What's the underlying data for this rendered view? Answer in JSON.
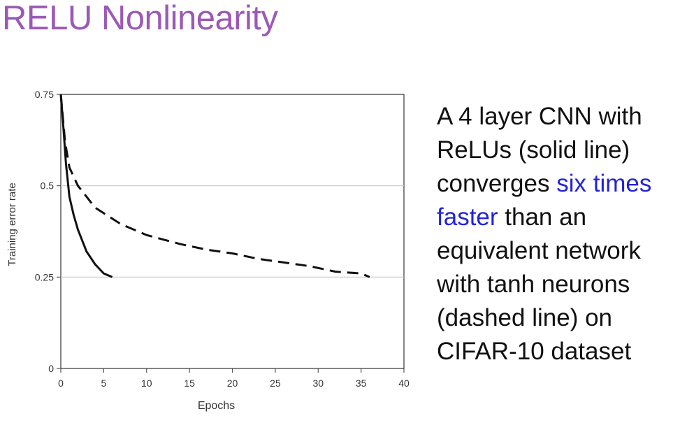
{
  "slide": {
    "title": "RELU Nonlinearity",
    "title_color": "#9b59b6"
  },
  "caption": {
    "lines": [
      {
        "parts": [
          {
            "text": "A 4 layer CNN with",
            "highlight": false
          }
        ]
      },
      {
        "parts": [
          {
            "text": "ReLUs (solid line)",
            "highlight": false
          }
        ]
      },
      {
        "parts": [
          {
            "text": "converges ",
            "highlight": false
          },
          {
            "text": "six times",
            "highlight": true
          }
        ]
      },
      {
        "parts": [
          {
            "text": "faster",
            "highlight": true
          },
          {
            "text": " than an",
            "highlight": false
          }
        ]
      },
      {
        "parts": [
          {
            "text": "equivalent network",
            "highlight": false
          }
        ]
      },
      {
        "parts": [
          {
            "text": "with tanh neurons",
            "highlight": false
          }
        ]
      },
      {
        "parts": [
          {
            "text": "(dashed line) on",
            "highlight": false
          }
        ]
      },
      {
        "parts": [
          {
            "text": "CIFAR-10 dataset",
            "highlight": false
          }
        ]
      }
    ],
    "text_color": "#111111",
    "highlight_color": "#2323d6"
  },
  "chart_data": {
    "type": "line",
    "title": "",
    "xlabel": "Epochs",
    "ylabel": "Training error rate",
    "xlim": [
      0,
      40
    ],
    "ylim": [
      0,
      0.75
    ],
    "x_ticks": [
      0,
      5,
      10,
      15,
      20,
      25,
      30,
      35,
      40
    ],
    "x_tick_labels": [
      "0",
      "5",
      "10",
      "15",
      "20",
      "25",
      "30",
      "35",
      "40"
    ],
    "y_ticks": [
      0,
      0.25,
      0.5,
      0.75
    ],
    "y_tick_labels": [
      "0",
      "0.25",
      "0.5",
      "0.75"
    ],
    "grid": "horizontal",
    "legend": "none",
    "series": [
      {
        "style": "solid",
        "x": [
          0,
          0.3,
          0.6,
          1,
          1.5,
          2,
          3,
          4,
          5,
          6
        ],
        "y": [
          0.75,
          0.66,
          0.56,
          0.47,
          0.42,
          0.38,
          0.32,
          0.285,
          0.26,
          0.25
        ]
      },
      {
        "style": "dashed",
        "x": [
          0,
          0.5,
          1,
          2,
          3,
          4,
          5,
          7,
          10,
          14,
          17,
          20,
          23,
          26,
          29,
          32,
          35,
          36
        ],
        "y": [
          0.75,
          0.62,
          0.55,
          0.5,
          0.47,
          0.44,
          0.425,
          0.395,
          0.365,
          0.34,
          0.325,
          0.315,
          0.3,
          0.29,
          0.28,
          0.265,
          0.26,
          0.25
        ]
      }
    ],
    "line_color": "#111111",
    "grid_color": "#c8c8c8",
    "axis_color": "#555555"
  }
}
